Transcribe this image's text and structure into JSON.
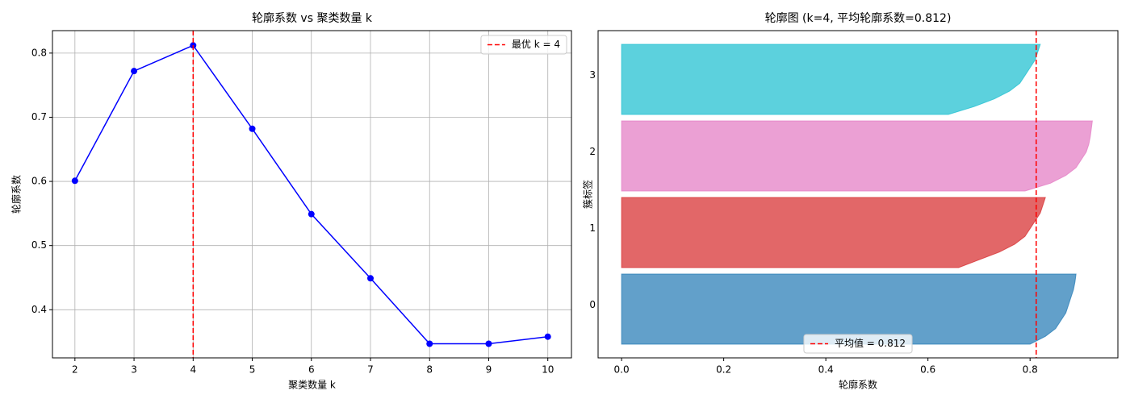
{
  "chart_data": [
    {
      "type": "line",
      "title": "轮廓系数 vs 聚类数量 k",
      "xlabel": "聚类数量 k",
      "ylabel": "轮廓系数",
      "x": [
        2,
        3,
        4,
        5,
        6,
        7,
        8,
        9,
        10
      ],
      "series": [
        {
          "color": "#0000ff",
          "values": [
            0.601,
            0.772,
            0.812,
            0.682,
            0.549,
            0.449,
            0.347,
            0.347,
            0.358
          ]
        }
      ],
      "xlim": [
        1.62,
        10.4
      ],
      "ylim": [
        0.325,
        0.835
      ],
      "xticks": [
        2,
        3,
        4,
        5,
        6,
        7,
        8,
        9,
        10
      ],
      "yticks": [
        0.4,
        0.5,
        0.6,
        0.7,
        0.8
      ],
      "grid": true,
      "vline": {
        "value": 4,
        "color": "#ff0000",
        "label": "最优 k = 4"
      },
      "legend": "upper right"
    },
    {
      "type": "silhouette",
      "title": "轮廓图 (k=4, 平均轮廓系数=0.812)",
      "xlabel": "轮廓系数",
      "ylabel": "簇标签",
      "series": [
        {
          "name": "0",
          "color": "#1f77b4",
          "values": [
            0.8,
            0.83,
            0.85,
            0.86,
            0.87,
            0.875,
            0.88,
            0.885,
            0.888,
            0.89
          ]
        },
        {
          "name": "1",
          "color": "#d62728",
          "values": [
            0.66,
            0.7,
            0.74,
            0.77,
            0.79,
            0.8,
            0.81,
            0.82,
            0.825,
            0.83
          ]
        },
        {
          "name": "2",
          "color": "#e377c2",
          "values": [
            0.79,
            0.84,
            0.87,
            0.89,
            0.9,
            0.91,
            0.915,
            0.918,
            0.92,
            0.922
          ]
        },
        {
          "name": "3",
          "color": "#17becf",
          "values": [
            0.64,
            0.69,
            0.73,
            0.76,
            0.78,
            0.79,
            0.8,
            0.81,
            0.815,
            0.82
          ]
        }
      ],
      "xlim": [
        -0.046,
        0.972
      ],
      "xticks": [
        {
          "value": 0,
          "label": "0.0"
        },
        0.2,
        0.4,
        0.6,
        0.8
      ],
      "grid": false,
      "vline": {
        "value": 0.812,
        "color": "#ff0000",
        "label": "平均值 = 0.812"
      },
      "legend": "lower center"
    }
  ]
}
